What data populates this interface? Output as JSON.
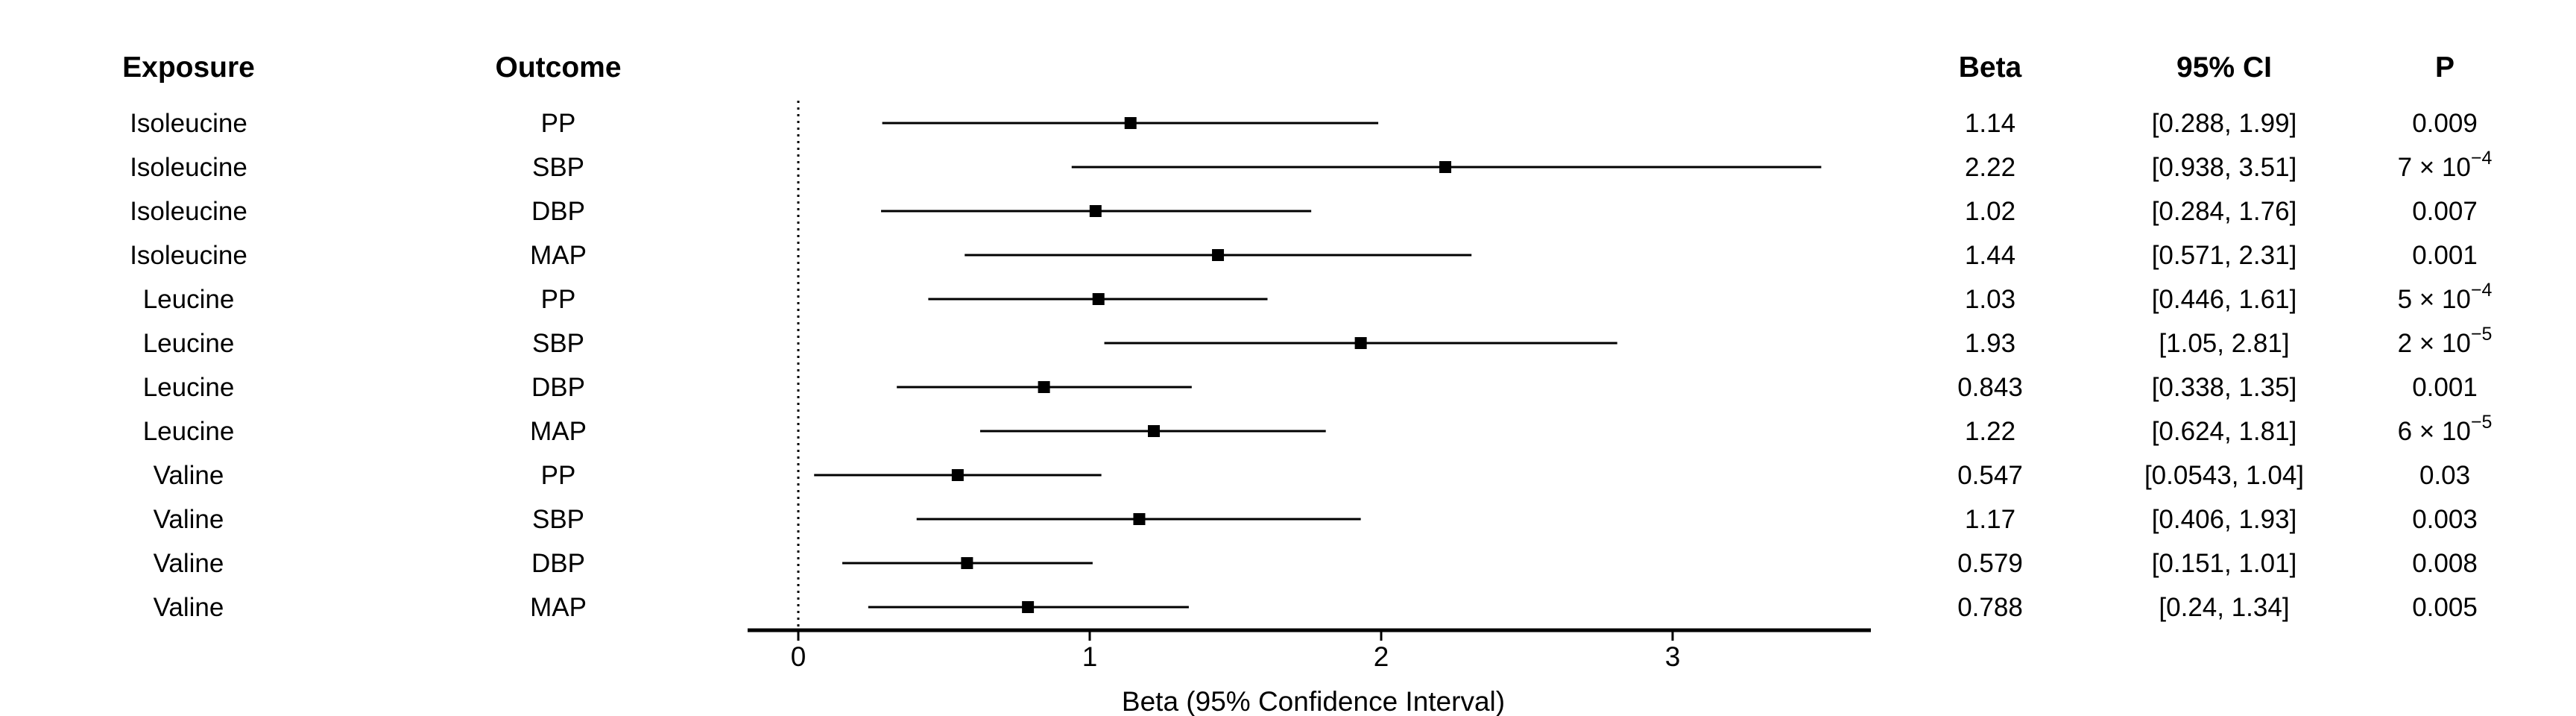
{
  "chart_data": {
    "type": "forest",
    "columns": {
      "exposure": "Exposure",
      "outcome": "Outcome",
      "beta": "Beta",
      "ci": "95% CI",
      "p": "P"
    },
    "xlabel": "Beta (95% Confidence Interval)",
    "xlim": [
      -0.17,
      3.68
    ],
    "xticks": [
      "0",
      "1",
      "2",
      "3"
    ],
    "reference_line": 0,
    "rows": [
      {
        "exposure": "Isoleucine",
        "outcome": "PP",
        "beta": 1.14,
        "lower": 0.288,
        "upper": 1.99,
        "beta_text": "1.14",
        "ci_text": "[0.288, 1.99]",
        "p_base": "0.009",
        "p_exp": ""
      },
      {
        "exposure": "Isoleucine",
        "outcome": "SBP",
        "beta": 2.22,
        "lower": 0.938,
        "upper": 3.51,
        "beta_text": "2.22",
        "ci_text": "[0.938, 3.51]",
        "p_base": "7 × 10",
        "p_exp": "−4"
      },
      {
        "exposure": "Isoleucine",
        "outcome": "DBP",
        "beta": 1.02,
        "lower": 0.284,
        "upper": 1.76,
        "beta_text": "1.02",
        "ci_text": "[0.284, 1.76]",
        "p_base": "0.007",
        "p_exp": ""
      },
      {
        "exposure": "Isoleucine",
        "outcome": "MAP",
        "beta": 1.44,
        "lower": 0.571,
        "upper": 2.31,
        "beta_text": "1.44",
        "ci_text": "[0.571, 2.31]",
        "p_base": "0.001",
        "p_exp": ""
      },
      {
        "exposure": "Leucine",
        "outcome": "PP",
        "beta": 1.03,
        "lower": 0.446,
        "upper": 1.61,
        "beta_text": "1.03",
        "ci_text": "[0.446, 1.61]",
        "p_base": "5 × 10",
        "p_exp": "−4"
      },
      {
        "exposure": "Leucine",
        "outcome": "SBP",
        "beta": 1.93,
        "lower": 1.05,
        "upper": 2.81,
        "beta_text": "1.93",
        "ci_text": "[1.05, 2.81]",
        "p_base": "2 × 10",
        "p_exp": "−5"
      },
      {
        "exposure": "Leucine",
        "outcome": "DBP",
        "beta": 0.843,
        "lower": 0.338,
        "upper": 1.35,
        "beta_text": "0.843",
        "ci_text": "[0.338, 1.35]",
        "p_base": "0.001",
        "p_exp": ""
      },
      {
        "exposure": "Leucine",
        "outcome": "MAP",
        "beta": 1.22,
        "lower": 0.624,
        "upper": 1.81,
        "beta_text": "1.22",
        "ci_text": "[0.624, 1.81]",
        "p_base": "6 × 10",
        "p_exp": "−5"
      },
      {
        "exposure": "Valine",
        "outcome": "PP",
        "beta": 0.547,
        "lower": 0.0543,
        "upper": 1.04,
        "beta_text": "0.547",
        "ci_text": "[0.0543, 1.04]",
        "p_base": "0.03",
        "p_exp": ""
      },
      {
        "exposure": "Valine",
        "outcome": "SBP",
        "beta": 1.17,
        "lower": 0.406,
        "upper": 1.93,
        "beta_text": "1.17",
        "ci_text": "[0.406, 1.93]",
        "p_base": "0.003",
        "p_exp": ""
      },
      {
        "exposure": "Valine",
        "outcome": "DBP",
        "beta": 0.579,
        "lower": 0.151,
        "upper": 1.01,
        "beta_text": "0.579",
        "ci_text": "[0.151, 1.01]",
        "p_base": "0.008",
        "p_exp": ""
      },
      {
        "exposure": "Valine",
        "outcome": "MAP",
        "beta": 0.788,
        "lower": 0.24,
        "upper": 1.34,
        "beta_text": "0.788",
        "ci_text": "[0.24, 1.34]",
        "p_base": "0.005",
        "p_exp": ""
      }
    ]
  }
}
